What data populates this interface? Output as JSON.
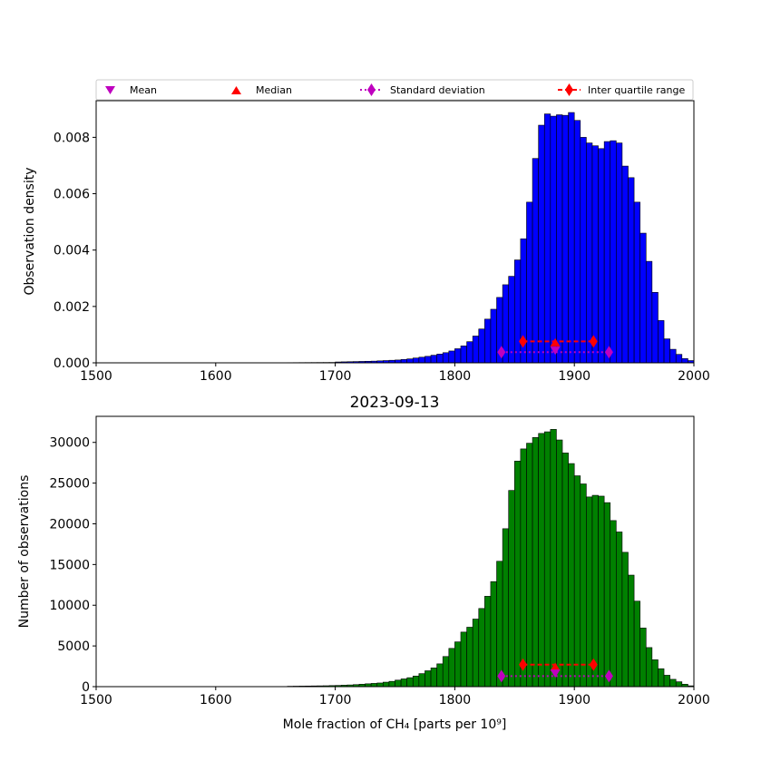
{
  "legend": {
    "entries": [
      {
        "label": "Mean",
        "marker": "triangle-down",
        "color": "#bf00bf"
      },
      {
        "label": "Median",
        "marker": "triangle-up",
        "color": "#ff0000"
      },
      {
        "label": "Standard deviation",
        "marker": "diamond-dotted-line",
        "color": "#bf00bf"
      },
      {
        "label": "Inter quartile range",
        "marker": "diamond-dashed-line",
        "color": "#ff0000"
      }
    ]
  },
  "chart_data": [
    {
      "type": "bar",
      "subtype": "histogram",
      "title": "",
      "xlabel": "",
      "ylabel": "Observation density",
      "xlim": [
        1500,
        2000
      ],
      "ylim": [
        0,
        0.0093
      ],
      "xticks": [
        "1500",
        "1600",
        "1700",
        "1800",
        "1900",
        "2000"
      ],
      "yticks": [
        "0.000",
        "0.002",
        "0.004",
        "0.006",
        "0.008"
      ],
      "bar_color": "#0000ff",
      "bin_width": 5,
      "x_start": 1500,
      "values": [
        0,
        0,
        0,
        0,
        0,
        0,
        0,
        0,
        0,
        0,
        0,
        0,
        0,
        0,
        0,
        0,
        0,
        0,
        0,
        0,
        0,
        0,
        0,
        0,
        0,
        0,
        0,
        0,
        5e-06,
        5e-06,
        5e-06,
        6e-06,
        7e-06,
        8e-06,
        9e-06,
        1e-05,
        1.1e-05,
        1.2e-05,
        1.3e-05,
        1.4e-05,
        3e-05,
        3.5e-05,
        4e-05,
        4.5e-05,
        5e-05,
        5.5e-05,
        6e-05,
        7e-05,
        8e-05,
        9e-05,
        0.0001,
        0.00012,
        0.00014,
        0.00017,
        0.0002,
        0.00023,
        0.00027,
        0.00031,
        0.00036,
        0.00042,
        0.0005,
        0.0006,
        0.00075,
        0.00095,
        0.0012,
        0.00155,
        0.0019,
        0.00232,
        0.00277,
        0.00307,
        0.00365,
        0.0044,
        0.0057,
        0.00725,
        0.00843,
        0.00883,
        0.00875,
        0.0088,
        0.00878,
        0.00888,
        0.0086,
        0.008,
        0.0078,
        0.0077,
        0.0076,
        0.00785,
        0.00788,
        0.0078,
        0.00698,
        0.00657,
        0.0057,
        0.0046,
        0.0036,
        0.0025,
        0.0015,
        0.00085,
        0.00048,
        0.0003,
        0.00015,
        8e-05
      ],
      "stats": {
        "mean": {
          "x": 1884,
          "y": 0.00043
        },
        "median": {
          "x": 1884,
          "y": 0.00073
        },
        "std": {
          "x": [
            1839,
            1929
          ],
          "y": 0.00038
        },
        "iqr": {
          "x": [
            1857,
            1916
          ],
          "y": 0.00076
        }
      }
    },
    {
      "type": "bar",
      "subtype": "histogram",
      "title": "2023-09-13",
      "xlabel": "Mole fraction of CH₄ [parts per 10⁹]",
      "ylabel": "Number of observations",
      "xlim": [
        1500,
        2000
      ],
      "ylim": [
        0,
        33200
      ],
      "xticks": [
        "1500",
        "1600",
        "1700",
        "1800",
        "1900",
        "2000"
      ],
      "yticks": [
        "0",
        "5000",
        "10000",
        "15000",
        "20000",
        "25000",
        "30000"
      ],
      "bar_color": "#008000",
      "bin_width": 5,
      "x_start": 1500,
      "values": [
        0,
        0,
        0,
        0,
        0,
        0,
        0,
        0,
        0,
        0,
        0,
        0,
        0,
        0,
        0,
        0,
        0,
        0,
        0,
        0,
        0,
        0,
        0,
        0,
        0,
        0,
        0,
        0,
        0,
        0,
        0,
        0,
        50,
        60,
        70,
        80,
        90,
        100,
        110,
        130,
        150,
        180,
        210,
        250,
        300,
        350,
        400,
        450,
        550,
        650,
        800,
        950,
        1100,
        1300,
        1600,
        1950,
        2300,
        2800,
        3700,
        4700,
        5500,
        6700,
        7300,
        8300,
        9600,
        11100,
        12900,
        15400,
        19400,
        24100,
        27700,
        29200,
        29900,
        30600,
        31100,
        31300,
        31600,
        30300,
        28700,
        27400,
        25900,
        24900,
        23300,
        23500,
        23400,
        22600,
        20400,
        19000,
        16500,
        13700,
        10500,
        7200,
        4800,
        3300,
        2200,
        1400,
        900,
        600,
        300,
        100
      ],
      "stats": {
        "mean": {
          "x": 1884,
          "y": 1600
        },
        "median": {
          "x": 1884,
          "y": 2450
        },
        "std": {
          "x": [
            1839,
            1929
          ],
          "y": 1300
        },
        "iqr": {
          "x": [
            1857,
            1916
          ],
          "y": 2700
        }
      }
    }
  ]
}
